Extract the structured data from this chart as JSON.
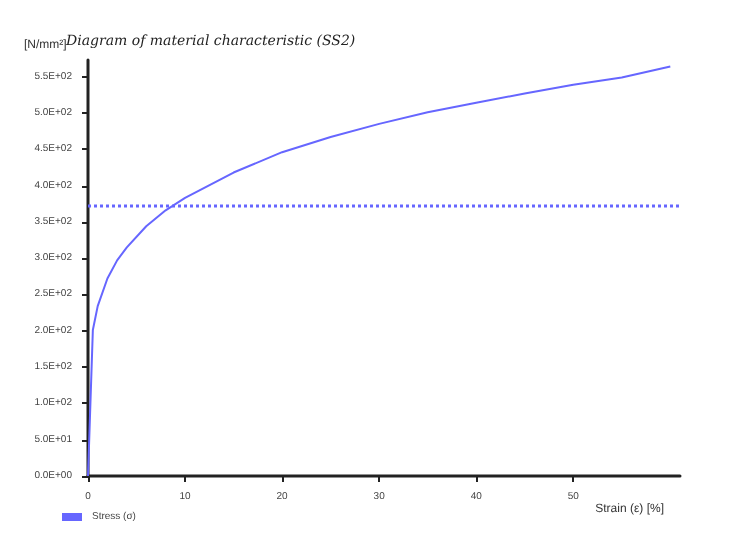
{
  "chart_data": {
    "type": "line",
    "title": "Diagram of material characteristic (SS2)",
    "xlabel": "Strain (ε) [%]",
    "ylabel": "[N/mm²]",
    "x": [
      0,
      0.5,
      1,
      2,
      3,
      4,
      6,
      8,
      10,
      15,
      20,
      25,
      30,
      35,
      40,
      45,
      50,
      55,
      60
    ],
    "series": [
      {
        "name": "Stress (σ)",
        "color": "#6666ff",
        "values": [
          0,
          201,
          234,
          272,
          297,
          315,
          344,
          366,
          383,
          418,
          446,
          467,
          485,
          501,
          514,
          527,
          539,
          549,
          564
        ]
      }
    ],
    "ref_lines": [
      {
        "axis": "y",
        "value": 373,
        "color": "#6666ff",
        "line_style": "dotted"
      }
    ],
    "xlim": [
      0,
      61
    ],
    "xticks": [
      0,
      10,
      20,
      30,
      40,
      50
    ],
    "ylim": [
      0,
      573
    ],
    "yticks": [
      {
        "value": 0,
        "label": "0.0E+00"
      },
      {
        "value": 50,
        "label": "5.0E+01"
      },
      {
        "value": 100,
        "label": "1.0E+02"
      },
      {
        "value": 150,
        "label": "1.5E+02"
      },
      {
        "value": 200,
        "label": "2.0E+02"
      },
      {
        "value": 250,
        "label": "2.5E+02"
      },
      {
        "value": 300,
        "label": "3.0E+02"
      },
      {
        "value": 350,
        "label": "3.5E+02"
      },
      {
        "value": 400,
        "label": "4.0E+02"
      },
      {
        "value": 450,
        "label": "4.5E+02"
      },
      {
        "value": 500,
        "label": "5.0E+02"
      },
      {
        "value": 550,
        "label": "5.5E+02"
      }
    ],
    "grid": false,
    "legend": "bottom left",
    "marker": "none",
    "line_style": "solid"
  }
}
